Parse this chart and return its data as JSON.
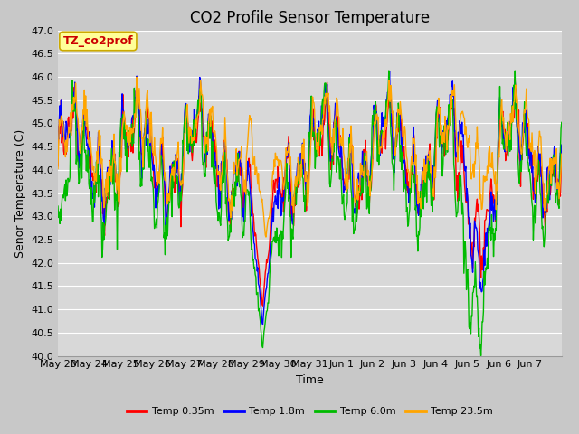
{
  "title": "CO2 Profile Sensor Temperature",
  "ylabel": "Senor Temperature (C)",
  "xlabel": "Time",
  "legend_label": "TZ_co2prof",
  "ylim": [
    40.0,
    47.0
  ],
  "yticks": [
    40.0,
    40.5,
    41.0,
    41.5,
    42.0,
    42.5,
    43.0,
    43.5,
    44.0,
    44.5,
    45.0,
    45.5,
    46.0,
    46.5,
    47.0
  ],
  "series": [
    {
      "label": "Temp 0.35m",
      "color": "#ff0000"
    },
    {
      "label": "Temp 1.8m",
      "color": "#0000ff"
    },
    {
      "label": "Temp 6.0m",
      "color": "#00bb00"
    },
    {
      "label": "Temp 23.5m",
      "color": "#ffa500"
    }
  ],
  "fig_facecolor": "#c8c8c8",
  "bg_color": "#d8d8d8",
  "title_fontsize": 12,
  "axis_fontsize": 9,
  "tick_fontsize": 8,
  "legend_box_facecolor": "#ffff99",
  "legend_box_edge": "#ccaa00",
  "grid_color": "#ffffff",
  "linewidth": 1.0,
  "xtick_labels": [
    "May 23",
    "May 24",
    "May 25",
    "May 26",
    "May 27",
    "May 28",
    "May 29",
    "May 30",
    "May 31",
    "Jun 1",
    "Jun 2",
    "Jun 3",
    "Jun 4",
    "Jun 5",
    "Jun 6",
    "Jun 7"
  ],
  "n_points": 800
}
